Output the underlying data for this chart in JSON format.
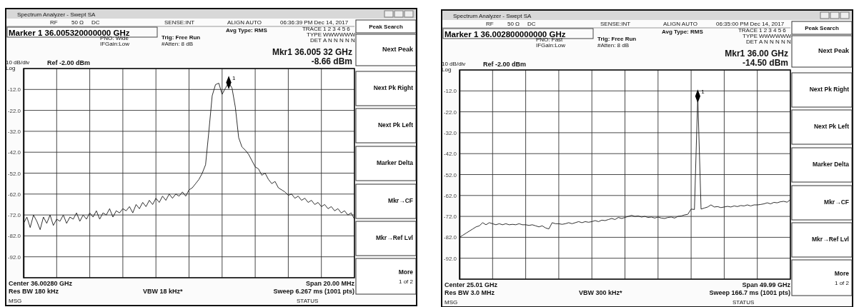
{
  "chart_data": [
    {
      "type": "line",
      "title": "Marker 1 36.005320000000 GHz",
      "line_style": "solid",
      "grid": true,
      "categories": [
        null,
        null,
        null,
        null,
        null,
        null,
        null,
        null,
        null,
        null,
        null,
        null,
        null,
        null,
        null,
        null,
        null,
        null,
        null,
        null,
        null,
        null,
        null,
        null,
        null,
        null,
        null,
        null,
        null,
        null,
        null,
        null,
        null,
        null,
        null,
        null,
        null,
        null,
        null,
        null,
        null,
        null,
        null,
        null,
        null,
        null,
        null,
        null,
        null,
        null,
        null,
        null,
        null,
        null,
        null,
        null,
        null,
        null,
        null,
        null,
        null,
        null,
        null,
        null,
        null,
        null,
        null,
        null,
        null,
        null,
        null,
        null,
        null,
        null,
        null,
        null,
        null,
        null,
        null,
        null,
        null,
        null,
        null,
        null,
        null,
        null,
        null,
        null,
        null,
        null,
        null,
        null,
        null,
        null,
        null,
        null,
        null,
        null,
        null,
        null,
        null
      ],
      "ylim": [
        -102,
        -2
      ],
      "yticks": [
        {
          "value": -2,
          "label": null
        },
        {
          "value": -12,
          "label": "-12.0"
        },
        {
          "value": -22,
          "label": "-22.0"
        },
        {
          "value": -32,
          "label": "-32.0"
        },
        {
          "value": -42,
          "label": "-42.0"
        },
        {
          "value": -52,
          "label": "-52.0"
        },
        {
          "value": -62,
          "label": "-62.0"
        },
        {
          "value": -72,
          "label": "-72.0"
        },
        {
          "value": -82,
          "label": "-82.0"
        },
        {
          "value": -92,
          "label": "-92.0"
        },
        {
          "value": -102,
          "label": null
        }
      ],
      "series": [
        {
          "color": "#1a1a1a",
          "values": [
            -76,
            -73,
            -78,
            -72,
            -75,
            -79,
            -73,
            -76,
            -72,
            -77,
            -74,
            -75,
            -72,
            -76,
            -73,
            -74,
            -71,
            -75,
            -72,
            -74,
            -71,
            -73,
            -70,
            -74,
            -71,
            -72,
            -69,
            -73,
            -70,
            -71,
            -69,
            -70,
            -68,
            -71,
            -67,
            -69,
            -66,
            -68,
            -65,
            -67,
            -64,
            -66,
            -63,
            -65,
            -62,
            -64,
            -62,
            -63,
            -61,
            -63,
            -60,
            -59,
            -57,
            -55,
            -52,
            -48,
            -32,
            -15,
            -9.7,
            -9,
            -14.3,
            -11.4,
            -8.66,
            -11.4,
            -20.5,
            -35,
            -39.5,
            -41,
            -43,
            -46,
            -49,
            -50,
            -53,
            -52,
            -55,
            -57,
            -56,
            -59,
            -60,
            -61,
            -62.6,
            -62,
            -64,
            -63,
            -65,
            -64,
            -66,
            -65,
            -67,
            -66,
            -68,
            -67,
            -69,
            -68,
            -70,
            -69,
            -71,
            -70,
            -72,
            -71,
            -74
          ]
        },
        {
          "type": "scatter",
          "name": "1",
          "marker": "diamond",
          "color": "#000000",
          "values": [
            null,
            null,
            null,
            null,
            null,
            null,
            null,
            null,
            null,
            null,
            null,
            null,
            null,
            null,
            null,
            null,
            null,
            null,
            null,
            null,
            null,
            null,
            null,
            null,
            null,
            null,
            null,
            null,
            null,
            null,
            null,
            null,
            null,
            null,
            null,
            null,
            null,
            null,
            null,
            null,
            null,
            null,
            null,
            null,
            null,
            null,
            null,
            null,
            null,
            null,
            null,
            null,
            null,
            null,
            null,
            null,
            null,
            null,
            null,
            null,
            null,
            null,
            -8.66,
            null,
            null,
            null,
            null,
            null,
            null,
            null,
            null,
            null,
            null,
            null,
            null,
            null,
            null,
            null,
            null,
            null,
            null,
            null,
            null,
            null,
            null,
            null,
            null,
            null,
            null,
            null,
            null,
            null,
            null,
            null,
            null,
            null,
            null,
            null,
            null,
            null,
            null
          ]
        }
      ],
      "annotations": [
        "Spectrum Analyzer - Swept SA",
        "RF",
        "50 Ω",
        "DC",
        "SENSE:INT",
        "ALIGN AUTO",
        "06:36:39 PM Dec 14, 2017",
        "TRACE",
        "1 2 3 4 5 6",
        "TYPE",
        "WWWWWW",
        "DET",
        "A N N N N N",
        "PNO: Wide",
        "IFGain:Low",
        "Trig: Free Run",
        "#Atten: 8 dB",
        "Avg Type: RMS",
        "Mkr1 36.005 32 GHz",
        "-8.66 dBm",
        "10 dB/div",
        "Log",
        "Ref -2.00 dBm",
        "Center 36.00280 GHz",
        "Res BW 180 kHz",
        "VBW 18 kHz*",
        "Span 20.00 MHz",
        "Sweep  6.267 ms (1001 pts)",
        "MSG",
        "STATUS",
        "Peak Search",
        "Next Peak",
        "Next Pk Right",
        "Next Pk Left",
        "Marker Delta",
        "Mkr→CF",
        "Mkr→Ref Lvl",
        "More",
        "1 of 2"
      ]
    },
    {
      "type": "line",
      "title": "Marker 1 36.002800000000 GHz",
      "line_style": "solid",
      "grid": true,
      "categories": [
        null,
        null,
        null,
        null,
        null,
        null,
        null,
        null,
        null,
        null,
        null,
        null,
        null,
        null,
        null,
        null,
        null,
        null,
        null,
        null,
        null,
        null,
        null,
        null,
        null,
        null,
        null,
        null,
        null,
        null,
        null,
        null,
        null,
        null,
        null,
        null,
        null,
        null,
        null,
        null,
        null,
        null,
        null,
        null,
        null,
        null,
        null,
        null,
        null,
        null,
        null,
        null,
        null,
        null,
        null,
        null,
        null,
        null,
        null,
        null,
        null,
        null,
        null,
        null,
        null,
        null,
        null,
        null,
        null,
        null,
        null,
        null,
        null,
        null,
        null,
        null,
        null,
        null,
        null,
        null,
        null,
        null,
        null,
        null,
        null,
        null,
        null,
        null,
        null,
        null,
        null,
        null,
        null,
        null,
        null,
        null,
        null,
        null,
        null,
        null,
        null
      ],
      "ylim": [
        -102,
        -2
      ],
      "yticks": [
        {
          "value": -2,
          "label": null
        },
        {
          "value": -12,
          "label": "-12.0"
        },
        {
          "value": -22,
          "label": "-22.0"
        },
        {
          "value": -32,
          "label": "-32.0"
        },
        {
          "value": -42,
          "label": "-42.0"
        },
        {
          "value": -52,
          "label": "-52.0"
        },
        {
          "value": -62,
          "label": "-62.0"
        },
        {
          "value": -72,
          "label": "-72.0"
        },
        {
          "value": -82,
          "label": "-82.0"
        },
        {
          "value": -92,
          "label": "-92.0"
        },
        {
          "value": -102,
          "label": null
        }
      ],
      "series": [
        {
          "color": "#1a1a1a",
          "values": [
            -82,
            -81,
            -80,
            -79,
            -78,
            -77,
            -76.5,
            -75,
            -76,
            -75,
            -75.5,
            -76,
            -75.5,
            -76,
            -75.5,
            -76,
            -75.8,
            -76,
            -75.5,
            -76,
            -76,
            -76.3,
            -76,
            -76.5,
            -77,
            -76.5,
            -77.5,
            -78,
            -75,
            -75.5,
            -75.5,
            -75.8,
            -75.5,
            -75,
            -75.5,
            -75,
            -74.5,
            -75,
            -74.5,
            -74.8,
            -74.5,
            -74,
            -74.5,
            -73.8,
            -74,
            -73.5,
            -73,
            -73.5,
            -72.5,
            -73,
            -72.5,
            -72,
            -71.5,
            -72,
            -71.8,
            -72.3,
            -72,
            -72.5,
            -72.3,
            -72.8,
            -72.3,
            -72.8,
            -73,
            -72.5,
            -72.3,
            -72.8,
            -72,
            -71.8,
            -71.3,
            -71,
            -68.5,
            -68.7,
            -14.5,
            -68.5,
            -68,
            -67.5,
            -66.5,
            -67.5,
            -67.3,
            -67.8,
            -67.5,
            -67.2,
            -67.5,
            -67,
            -67.3,
            -66.8,
            -67,
            -66.5,
            -67,
            -66.5,
            -66.5,
            -66.3,
            -66,
            -65.5,
            -66,
            -65.3,
            -65.5,
            -65,
            -64.8,
            -65.2,
            -64
          ]
        },
        {
          "type": "scatter",
          "name": "1",
          "marker": "diamond",
          "color": "#000000",
          "values": [
            null,
            null,
            null,
            null,
            null,
            null,
            null,
            null,
            null,
            null,
            null,
            null,
            null,
            null,
            null,
            null,
            null,
            null,
            null,
            null,
            null,
            null,
            null,
            null,
            null,
            null,
            null,
            null,
            null,
            null,
            null,
            null,
            null,
            null,
            null,
            null,
            null,
            null,
            null,
            null,
            null,
            null,
            null,
            null,
            null,
            null,
            null,
            null,
            null,
            null,
            null,
            null,
            null,
            null,
            null,
            null,
            null,
            null,
            null,
            null,
            null,
            null,
            null,
            null,
            null,
            null,
            null,
            null,
            null,
            null,
            null,
            null,
            -14.5,
            null,
            null,
            null,
            null,
            null,
            null,
            null,
            null,
            null,
            null,
            null,
            null,
            null,
            null,
            null,
            null,
            null,
            null,
            null,
            null,
            null,
            null,
            null,
            null,
            null,
            null,
            null,
            null
          ]
        }
      ],
      "annotations": [
        "Spectrum Analyzer - Swept SA",
        "RF",
        "50 Ω",
        "DC",
        "SENSE:INT",
        "ALIGN AUTO",
        "06:35:00 PM Dec 14, 2017",
        "TRACE",
        "1 2 3 4 5 6",
        "TYPE",
        "WWWWWW",
        "DET",
        "A N N N N N",
        "PNO: Fast",
        "IFGain:Low",
        "Trig: Free Run",
        "#Atten: 8 dB",
        "Avg Type: RMS",
        "Mkr1 36.00 GHz",
        "-14.50 dBm",
        "10 dB/div",
        "Log",
        "Ref -2.00 dBm",
        "Center 25.01 GHz",
        "Res BW 3.0 MHz",
        "VBW 300 kHz*",
        "Span 49.99 GHz",
        "Sweep  166.7 ms (1001 pts)",
        "MSG",
        "STATUS",
        "Peak Search",
        "Next Peak",
        "Next Pk Right",
        "Next Pk Left",
        "Marker Delta",
        "Mkr→CF",
        "Mkr→Ref Lvl",
        "More",
        "1 of 2"
      ]
    }
  ]
}
